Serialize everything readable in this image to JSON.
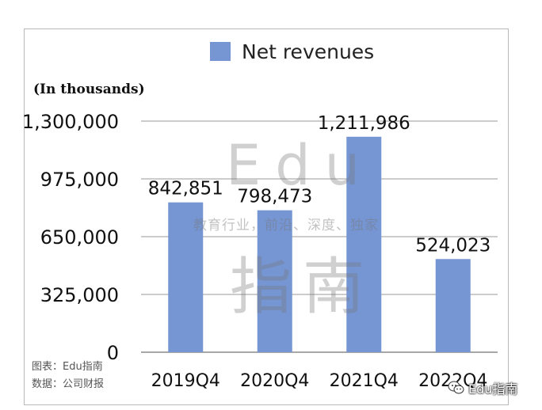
{
  "chart_data": {
    "type": "bar",
    "legend": [
      "Net revenues"
    ],
    "unit_label": "(In thousands)",
    "categories": [
      "2019Q4",
      "2020Q4",
      "2021Q4",
      "2022Q4"
    ],
    "series": [
      {
        "name": "Net revenues",
        "values": [
          842851,
          798473,
          1211986,
          524023
        ]
      }
    ],
    "data_labels": [
      "842,851",
      "798,473",
      "1,211,986",
      "524,023"
    ],
    "yticks": [
      0,
      325000,
      650000,
      975000,
      1300000
    ],
    "ytick_labels": [
      "0",
      "325,000",
      "650,000",
      "975,000",
      "1,300,000"
    ],
    "ylim": [
      0,
      1300000
    ],
    "grid": true,
    "legend_position": "top",
    "bar_color": "#7595d3"
  },
  "watermark": {
    "edu": "Edu",
    "tagline": "教育行业，前沿、深度、独家",
    "cn": "指南"
  },
  "source": {
    "chart_credit": "图表：Edu指南",
    "data_credit": "数据：公司财报"
  },
  "wechat_badge": "Edu指南"
}
